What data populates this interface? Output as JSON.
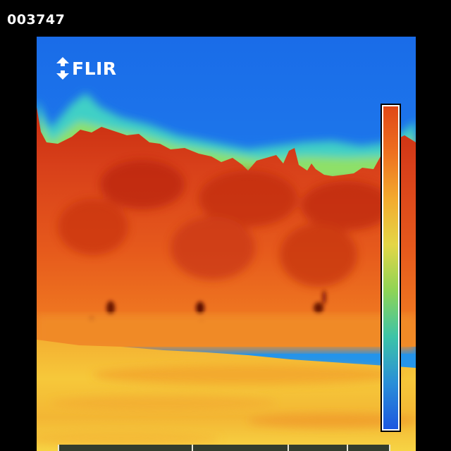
{
  "frame_id": "003747",
  "logo": {
    "text": "FLIR",
    "icon": "flir-diamond-icon"
  },
  "palette": {
    "sky": "#1f78f0",
    "sky_light": "#2aa6e8",
    "cyan": "#3fd2c8",
    "green_fringe": "#8fe06a",
    "hot_red": "#d23212",
    "hot_orange": "#e8551a",
    "orange": "#f07a1e",
    "ground_yellow": "#f7cf3a",
    "ground_orange": "#f2a530"
  },
  "scale_bar": {
    "colors": [
      "#e04816",
      "#ee7020",
      "#f3aa2e",
      "#e4d646",
      "#8ed456",
      "#3cc4a8",
      "#2a8fd8",
      "#1c58e0"
    ]
  }
}
